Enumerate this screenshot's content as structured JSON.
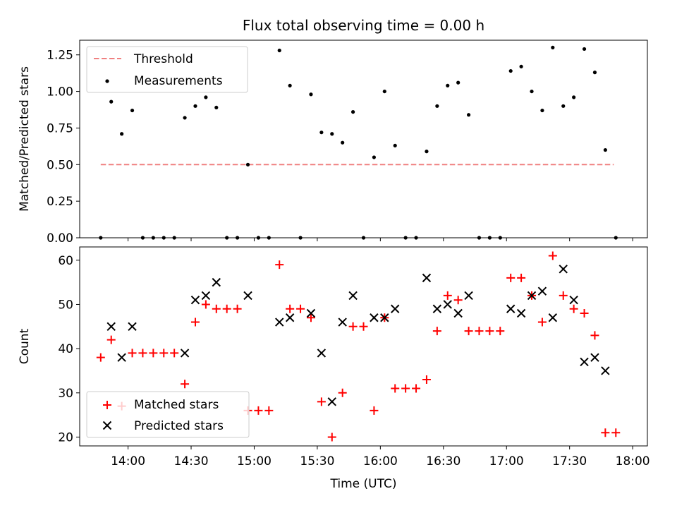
{
  "chart_data": [
    {
      "type": "scatter",
      "title": "Flux total observing time = 0.00 h",
      "xlabel": "",
      "ylabel": "Matched/Predicted stars",
      "xlim": [
        "13:37",
        "18:07"
      ],
      "ylim": [
        0,
        1.35
      ],
      "yticks": [
        "0.00",
        "0.25",
        "0.50",
        "0.75",
        "1.00",
        "1.25"
      ],
      "ytick_values": [
        0,
        0.25,
        0.5,
        0.75,
        1.0,
        1.25
      ],
      "grid": false,
      "legend": {
        "position": "top-left",
        "entries": [
          {
            "label": "Threshold",
            "marker": "dashed-line",
            "color": "#f08080"
          },
          {
            "label": "Measurements",
            "marker": "dot",
            "color": "#000000"
          }
        ]
      },
      "series": [
        {
          "name": "Threshold",
          "style": "dashed",
          "color": "#f08080",
          "x": [
            "13:47",
            "17:51"
          ],
          "y": [
            0.5,
            0.5
          ]
        },
        {
          "name": "Measurements",
          "style": "dot",
          "color": "#000000",
          "x": [
            "13:47",
            "13:52",
            "13:57",
            "14:02",
            "14:07",
            "14:12",
            "14:17",
            "14:22",
            "14:27",
            "14:32",
            "14:37",
            "14:42",
            "14:47",
            "14:52",
            "14:57",
            "15:02",
            "15:07",
            "15:12",
            "15:17",
            "15:22",
            "15:27",
            "15:32",
            "15:37",
            "15:42",
            "15:47",
            "15:52",
            "15:57",
            "16:02",
            "16:07",
            "16:12",
            "16:17",
            "16:22",
            "16:27",
            "16:32",
            "16:37",
            "16:42",
            "16:47",
            "16:52",
            "16:57",
            "17:02",
            "17:07",
            "17:12",
            "17:17",
            "17:22",
            "17:27",
            "17:32",
            "17:37",
            "17:42",
            "17:47",
            "17:52"
          ],
          "y": [
            0.0,
            0.93,
            0.71,
            0.87,
            0.0,
            0.0,
            0.0,
            0.0,
            0.82,
            0.9,
            0.96,
            0.89,
            0.0,
            0.0,
            0.5,
            0.0,
            0.0,
            1.28,
            1.04,
            0.0,
            0.98,
            0.72,
            0.71,
            0.65,
            0.86,
            0.0,
            0.55,
            1.0,
            0.63,
            0.0,
            0.0,
            0.59,
            0.9,
            1.04,
            1.06,
            0.84,
            0.0,
            0.0,
            0.0,
            1.14,
            1.17,
            1.0,
            0.87,
            1.3,
            0.9,
            0.96,
            1.29,
            1.13,
            0.6,
            0.0
          ]
        }
      ]
    },
    {
      "type": "scatter",
      "title": "",
      "xlabel": "Time (UTC)",
      "ylabel": "Count",
      "xlim": [
        "13:37",
        "18:07"
      ],
      "ylim": [
        18,
        63
      ],
      "xticks": [
        "14:00",
        "14:30",
        "15:00",
        "15:30",
        "16:00",
        "16:30",
        "17:00",
        "17:30",
        "18:00"
      ],
      "xtick_values": [
        "14:00",
        "14:30",
        "15:00",
        "15:30",
        "16:00",
        "16:30",
        "17:00",
        "17:30",
        "18:00"
      ],
      "yticks": [
        "20",
        "30",
        "40",
        "50",
        "60"
      ],
      "ytick_values": [
        20,
        30,
        40,
        50,
        60
      ],
      "grid": false,
      "legend": {
        "position": "bottom-left",
        "entries": [
          {
            "label": "Matched stars",
            "marker": "plus",
            "color": "#ff0000"
          },
          {
            "label": "Predicted stars",
            "marker": "x",
            "color": "#000000"
          }
        ]
      },
      "series": [
        {
          "name": "Matched stars",
          "marker": "plus",
          "color": "#ff0000",
          "x": [
            "13:47",
            "13:52",
            "13:57",
            "14:02",
            "14:07",
            "14:12",
            "14:17",
            "14:22",
            "14:27",
            "14:32",
            "14:37",
            "14:42",
            "14:47",
            "14:52",
            "14:57",
            "15:02",
            "15:07",
            "15:12",
            "15:17",
            "15:22",
            "15:27",
            "15:32",
            "15:37",
            "15:42",
            "15:47",
            "15:52",
            "15:57",
            "16:02",
            "16:07",
            "16:12",
            "16:17",
            "16:22",
            "16:27",
            "16:32",
            "16:37",
            "16:42",
            "16:47",
            "16:52",
            "16:57",
            "17:02",
            "17:07",
            "17:12",
            "17:17",
            "17:22",
            "17:27",
            "17:32",
            "17:37",
            "17:42",
            "17:47",
            "17:52"
          ],
          "y": [
            38,
            42,
            27,
            39,
            39,
            39,
            39,
            39,
            32,
            46,
            50,
            49,
            49,
            49,
            26,
            26,
            26,
            59,
            49,
            49,
            47,
            28,
            20,
            30,
            45,
            45,
            26,
            47,
            31,
            31,
            31,
            33,
            44,
            52,
            51,
            44,
            44,
            44,
            44,
            56,
            56,
            52,
            46,
            61,
            52,
            49,
            48,
            43,
            21,
            21
          ]
        },
        {
          "name": "Predicted stars",
          "marker": "x",
          "color": "#000000",
          "x": [
            "13:52",
            "13:57",
            "14:02",
            "14:27",
            "14:32",
            "14:37",
            "14:42",
            "14:57",
            "15:12",
            "15:17",
            "15:27",
            "15:32",
            "15:37",
            "15:42",
            "15:47",
            "15:57",
            "16:02",
            "16:07",
            "16:22",
            "16:27",
            "16:32",
            "16:37",
            "16:42",
            "17:02",
            "17:07",
            "17:12",
            "17:17",
            "17:22",
            "17:27",
            "17:32",
            "17:37",
            "17:42",
            "17:47"
          ],
          "y": [
            45,
            38,
            45,
            39,
            51,
            52,
            55,
            52,
            46,
            47,
            48,
            39,
            28,
            46,
            52,
            47,
            47,
            49,
            56,
            49,
            50,
            48,
            52,
            49,
            48,
            52,
            53,
            47,
            58,
            51,
            37,
            38,
            35
          ]
        }
      ]
    }
  ]
}
